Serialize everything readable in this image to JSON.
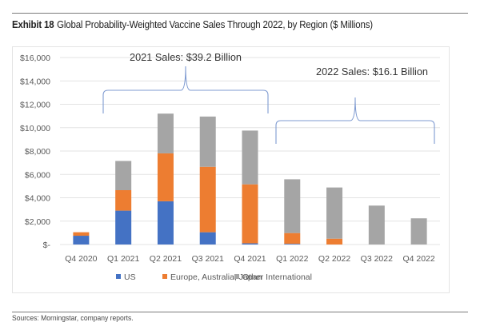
{
  "header": {
    "exhibit_label": "Exhibit 18",
    "title": "Global Probability-Weighted Vaccine Sales Through 2022, by Region ($ Millions)"
  },
  "footer": {
    "sources": "Sources: Morningstar, company reports."
  },
  "chart_data": {
    "type": "bar",
    "stacked": true,
    "title": "Global Probability-Weighted Vaccine Sales Through 2022, by Region ($ Millions)",
    "xlabel": "",
    "ylabel": "",
    "ylim": [
      0,
      16000
    ],
    "y_ticks": [
      0,
      2000,
      4000,
      6000,
      8000,
      10000,
      12000,
      14000,
      16000
    ],
    "y_tick_labels": [
      "$-",
      "$2,000",
      "$4,000",
      "$6,000",
      "$8,000",
      "$10,000",
      "$12,000",
      "$14,000",
      "$16,000"
    ],
    "grid": true,
    "legend_position": "bottom",
    "categories": [
      "Q4 2020",
      "Q1 2021",
      "Q2 2021",
      "Q3 2021",
      "Q4 2021",
      "Q1 2022",
      "Q2 2022",
      "Q3 2022",
      "Q4 2022"
    ],
    "series": [
      {
        "name": "US",
        "color": "#4472c4",
        "values": [
          750,
          2900,
          3700,
          1050,
          100,
          60,
          0,
          0,
          0
        ]
      },
      {
        "name": "Europe, Australia, Japan",
        "color": "#ed7d31",
        "values": [
          300,
          1750,
          4100,
          5600,
          5050,
          920,
          500,
          0,
          0
        ]
      },
      {
        "name": "Other International",
        "color": "#a5a5a5",
        "values": [
          0,
          2500,
          3400,
          4300,
          4600,
          4600,
          4380,
          3330,
          2240
        ]
      }
    ],
    "annotations": [
      {
        "text": "2021 Sales: $39.2 Billion",
        "bracket_from": "Q1 2021",
        "bracket_to": "Q4 2021"
      },
      {
        "text": "2022 Sales: $16.1 Billion",
        "bracket_from": "Q1 2022",
        "bracket_to": "Q4 2022"
      }
    ]
  }
}
